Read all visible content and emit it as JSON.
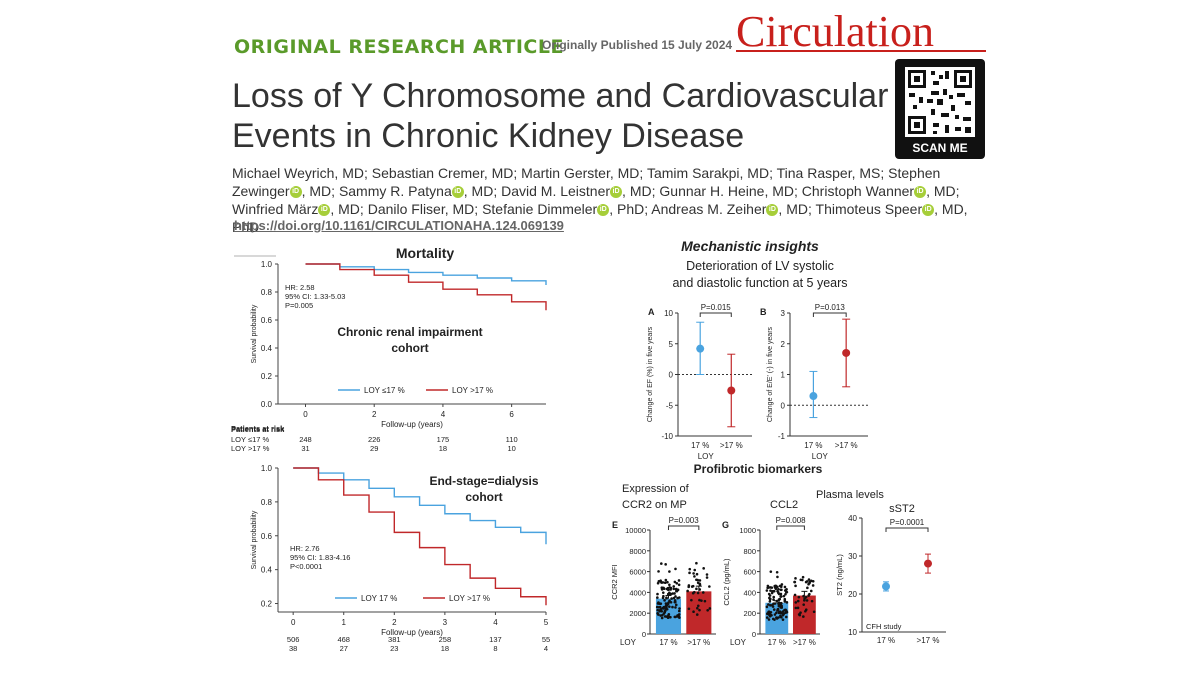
{
  "header": {
    "kicker": "ORIGINAL RESEARCH ARTICLE",
    "published": "Originally Published 15 July 2024",
    "journal": "Circulation"
  },
  "article": {
    "title_line1": "Loss of Y Chromosome and Cardiovascular",
    "title_line2": "Events in Chronic Kidney Disease",
    "authors": [
      {
        "name": "Michael Weyrich, MD;",
        "orcid": false
      },
      {
        "name": "Sebastian Cremer, MD;",
        "orcid": false
      },
      {
        "name": "Martin Gerster, MD;",
        "orcid": false
      },
      {
        "name": "Tamim Sarakpi, MD;",
        "orcid": false
      },
      {
        "name": "Tina Rasper, MS;",
        "orcid": false
      },
      {
        "name": "Stephen Zewinger",
        "orcid": true,
        "suffix": ", MD;"
      },
      {
        "name": "Sammy R. Patyna",
        "orcid": true,
        "suffix": ", MD;"
      },
      {
        "name": "David M. Leistner",
        "orcid": true,
        "suffix": ", MD;"
      },
      {
        "name": "Gunnar H. Heine, MD;",
        "orcid": false
      },
      {
        "name": "Christoph Wanner",
        "orcid": true,
        "suffix": ", MD;"
      },
      {
        "name": "Winfried März",
        "orcid": true,
        "suffix": ", MD;"
      },
      {
        "name": "Danilo Fliser, MD;",
        "orcid": false
      },
      {
        "name": "Stefanie Dimmeler",
        "orcid": true,
        "suffix": ", PhD;"
      },
      {
        "name": "Andreas M. Zeiher",
        "orcid": true,
        "suffix": ", MD;"
      },
      {
        "name": "Thimoteus Speer",
        "orcid": true,
        "suffix": ", MD, PhD"
      }
    ],
    "doi": "https://doi.org/10.1161/CIRCULATIONAHA.124.069139"
  },
  "qr": {
    "label": "SCAN ME"
  },
  "chart_data": [
    {
      "type": "line",
      "title": "Mortality",
      "subtitle": "Chronic renal impairment cohort",
      "subtitle_line1": "Chronic renal impairment",
      "subtitle_line2": "cohort",
      "xlabel": "Follow-up (years)",
      "ylabel": "Survival probability",
      "xlim": [
        -0.8,
        7
      ],
      "ylim": [
        0.0,
        1.0
      ],
      "xticks": [
        "0",
        "2",
        "4",
        "6"
      ],
      "yticks": [
        "0.0",
        "0.2",
        "0.4",
        "0.6",
        "0.8",
        "1.0"
      ],
      "stats": [
        "HR: 2.58",
        "95% CI: 1.33-5.03",
        "P=0.005"
      ],
      "series": [
        {
          "name": "LOY ≤17 %",
          "color": "#4aa3df",
          "x": [
            0,
            1,
            2,
            3,
            4,
            5,
            6,
            7
          ],
          "y": [
            1.0,
            0.98,
            0.96,
            0.94,
            0.92,
            0.9,
            0.88,
            0.85
          ]
        },
        {
          "name": "LOY >17 %",
          "color": "#c0282a",
          "x": [
            0,
            1,
            2,
            3,
            4,
            5,
            6,
            7
          ],
          "y": [
            1.0,
            0.96,
            0.92,
            0.87,
            0.82,
            0.78,
            0.73,
            0.67
          ]
        }
      ],
      "risk": {
        "heading": "Patients at risk",
        "rows": [
          {
            "label": "LOY ≤17 %",
            "values": [
              "248",
              "226",
              "175",
              "110"
            ]
          },
          {
            "label": "LOY >17 %",
            "values": [
              "31",
              "29",
              "18",
              "10"
            ]
          }
        ]
      }
    },
    {
      "type": "line",
      "subtitle": "End-stage=dialysis cohort",
      "subtitle_line1": "End-stage=dialysis",
      "subtitle_line2": "cohort",
      "xlabel": "Follow-up (years)",
      "ylabel": "Survival probability",
      "xlim": [
        -0.3,
        5
      ],
      "ylim": [
        0.15,
        1.0
      ],
      "xticks": [
        "0",
        "1",
        "2",
        "3",
        "4",
        "5"
      ],
      "yticks": [
        "0.2",
        "0.4",
        "0.6",
        "0.8",
        "1.0"
      ],
      "stats": [
        "HR: 2.76",
        "95% CI: 1.83-4.16",
        "P<0.0001"
      ],
      "series": [
        {
          "name": "LOY  17 %",
          "color": "#4aa3df",
          "x": [
            0,
            0.5,
            1,
            1.5,
            2,
            2.5,
            3,
            3.5,
            4,
            4.5,
            5
          ],
          "y": [
            1.0,
            0.97,
            0.93,
            0.88,
            0.83,
            0.78,
            0.73,
            0.69,
            0.65,
            0.62,
            0.55
          ]
        },
        {
          "name": "LOY >17 %",
          "color": "#c0282a",
          "x": [
            0,
            0.5,
            1,
            1.5,
            2,
            2.5,
            3,
            3.5,
            4,
            4.5,
            5
          ],
          "y": [
            1.0,
            0.93,
            0.84,
            0.74,
            0.62,
            0.53,
            0.43,
            0.35,
            0.29,
            0.24,
            0.19
          ]
        }
      ],
      "risk": {
        "heading": "",
        "rows": [
          {
            "label": "",
            "values": [
              "506",
              "468",
              "381",
              "258",
              "137",
              "55"
            ]
          },
          {
            "label": "",
            "values": [
              "38",
              "27",
              "23",
              "18",
              "8",
              "4"
            ]
          }
        ]
      }
    },
    {
      "type": "scatter",
      "panel": "A",
      "ylabel": "Change of EF (%) in five years",
      "ylim": [
        -10,
        10
      ],
      "yticks": [
        "-10",
        "-5",
        "0",
        "5",
        "10"
      ],
      "categories": [
        "17 %",
        ">17 %"
      ],
      "xlabel": "LOY",
      "pvalue": "P=0.015",
      "points": [
        {
          "mean": 4.2,
          "low": 0.0,
          "high": 8.5,
          "color": "#4aa3df"
        },
        {
          "mean": -2.6,
          "low": -8.5,
          "high": 3.3,
          "color": "#c0282a"
        }
      ]
    },
    {
      "type": "scatter",
      "panel": "B",
      "ylabel": "Change of E/E' (-) in five years",
      "ylim": [
        -1,
        3
      ],
      "yticks": [
        "-1",
        "0",
        "1",
        "2",
        "3"
      ],
      "categories": [
        "17 %",
        ">17 %"
      ],
      "xlabel": "LOY",
      "pvalue": "P=0.013",
      "points": [
        {
          "mean": 0.3,
          "low": -0.4,
          "high": 1.1,
          "color": "#4aa3df"
        },
        {
          "mean": 1.7,
          "low": 0.6,
          "high": 2.8,
          "color": "#c0282a"
        }
      ]
    },
    {
      "type": "bar",
      "panel": "E",
      "title": "Expression of CCR2 on MP",
      "title_line1": "Expression of",
      "title_line2": "CCR2 on MP",
      "ylabel": "CCR2 MFI",
      "ylim": [
        0,
        10000
      ],
      "yticks": [
        "0",
        "2000",
        "4000",
        "6000",
        "8000",
        "10000"
      ],
      "xlabel": "LOY",
      "categories": [
        "17 %",
        ">17 %"
      ],
      "values": [
        3400,
        4100
      ],
      "errors": [
        300,
        500
      ],
      "colors": [
        "#4aa3df",
        "#c0282a"
      ],
      "pvalue": "P=0.003"
    },
    {
      "type": "bar",
      "panel": "G",
      "title": "CCL2",
      "ylabel": "CCL2 (pg/mL)",
      "ylim": [
        0,
        1000
      ],
      "yticks": [
        "0",
        "200",
        "400",
        "600",
        "800",
        "1000"
      ],
      "xlabel": "LOY",
      "categories": [
        "17 %",
        ">17 %"
      ],
      "values": [
        300,
        370
      ],
      "errors": [
        20,
        40
      ],
      "colors": [
        "#4aa3df",
        "#c0282a"
      ],
      "pvalue": "P=0.008"
    },
    {
      "type": "scatter",
      "title": "sST2",
      "ylabel": "ST2 (ng/mL)",
      "ylim": [
        10,
        40
      ],
      "yticks": [
        "10",
        "20",
        "30",
        "40"
      ],
      "categories": [
        "17 %",
        ">17 %"
      ],
      "pvalue": "P=0.0001",
      "footnote": "CFH study",
      "points": [
        {
          "mean": 22,
          "low": 20.8,
          "high": 23.2,
          "color": "#4aa3df"
        },
        {
          "mean": 28,
          "low": 25.5,
          "high": 30.5,
          "color": "#c0282a"
        }
      ]
    }
  ],
  "labels": {
    "mechanistic": "Mechanistic insights",
    "lv_line1": "Deterioration of LV systolic",
    "lv_line2": "and diastolic function at 5 years",
    "profibrotic": "Profibrotic biomarkers",
    "plasma": "Plasma levels"
  }
}
